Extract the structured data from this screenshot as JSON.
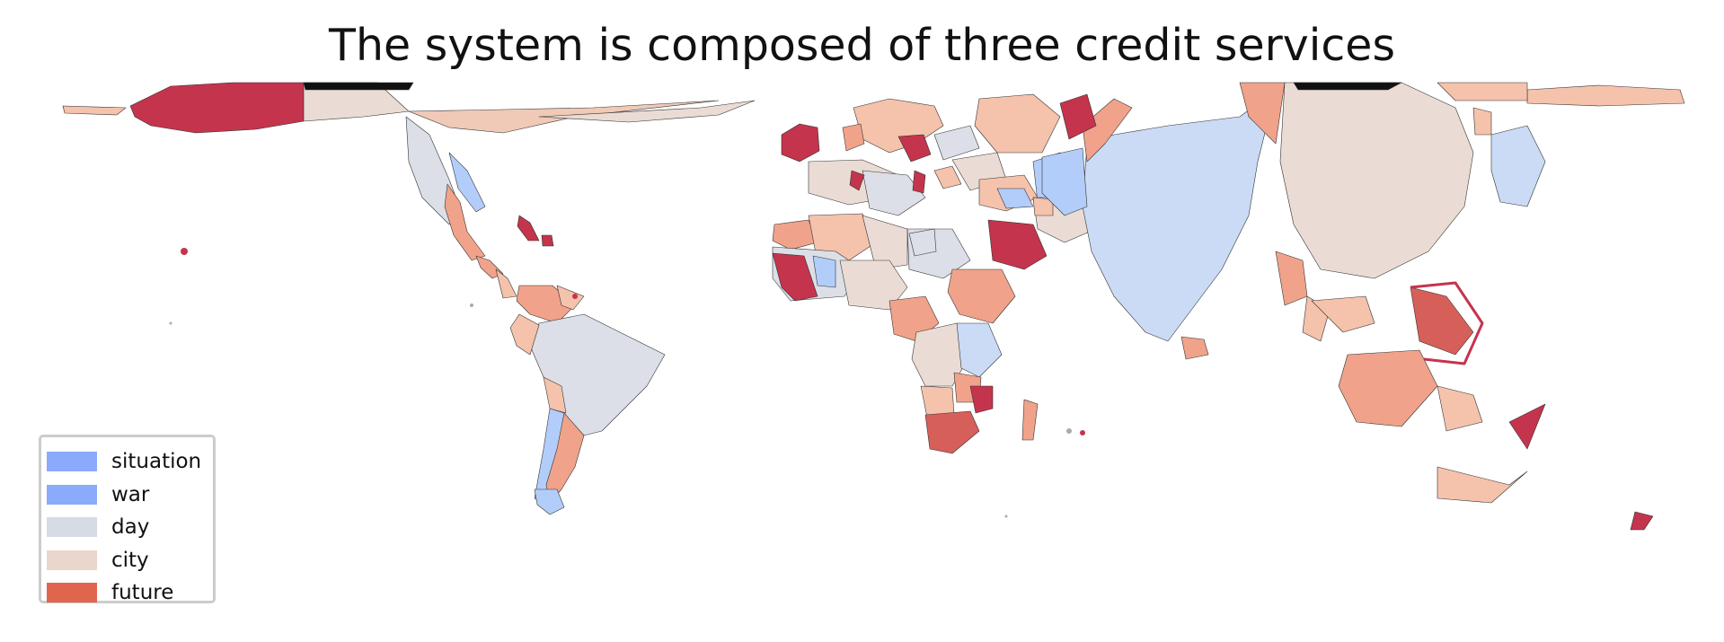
{
  "title": "The system is composed of three credit services",
  "legend": {
    "placement": "lower-left",
    "items": [
      {
        "label": "situation",
        "color": "#8aabfb"
      },
      {
        "label": "war",
        "color": "#8aabfb"
      },
      {
        "label": "day",
        "color": "#d6dbe5"
      },
      {
        "label": "city",
        "color": "#ead6cd"
      },
      {
        "label": "future",
        "color": "#e0654f"
      }
    ]
  },
  "colors": {
    "deep_red": "#c4344d",
    "salmon": "#f0a38a",
    "light_salmon": "#f5c2ac",
    "pale_city": "#eadcd4",
    "pale_blue": "#cbdaf5",
    "mid_blue": "#b3cdfa",
    "grey_day": "#dcdfe7",
    "red_future": "#d65f5a",
    "border": "#444444"
  }
}
